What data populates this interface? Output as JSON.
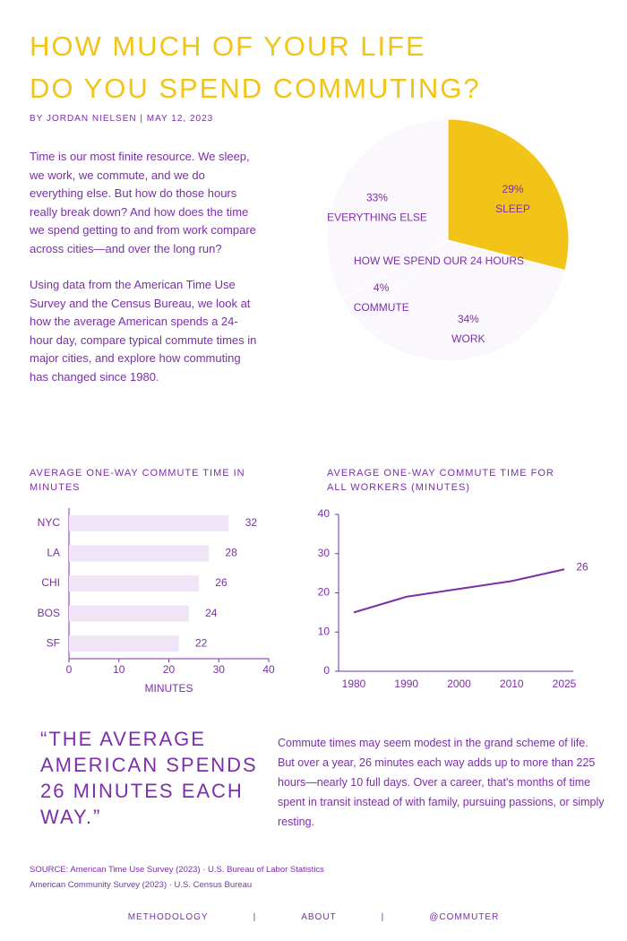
{
  "header": {
    "title_lines": [
      "HOW MUCH OF YOUR LIFE",
      "DO YOU SPEND COMMUTING?"
    ],
    "byline": "BY JORDAN NIELSEN | MAY 12, 2023"
  },
  "intro": [
    "Time is our most finite resource. We sleep, we work, we commute, and we do everything else. But how do those hours really break down? And how does the time we spend getting to and from work compare across cities—and over the long run?",
    "Using data from the American Time Use Survey and the Census Bureau, we look at how the average American spends a 24-hour day, compare typical commute times in major cities, and explore how commuting has changed since 1980."
  ],
  "chart_data": [
    {
      "type": "pie",
      "title": "HOW WE SPEND OUR 24 HOURS",
      "categories": [
        "SLEEP",
        "WORK",
        "COMMUTE",
        "EVERYTHING ELSE"
      ],
      "values": [
        29,
        34,
        4,
        33
      ],
      "value_labels": [
        "29%",
        "34%",
        "4%",
        "33%"
      ],
      "colors": [
        "#f2c417",
        "#fbf8fd",
        "#fbf8fd",
        "#fbf8fd"
      ]
    },
    {
      "type": "hbar",
      "title": "AVERAGE ONE-WAY COMMUTE TIME IN MINUTES",
      "categories": [
        "NYC",
        "LA",
        "CHI",
        "BOS",
        "SF"
      ],
      "values": [
        32,
        28,
        26,
        24,
        22
      ],
      "color": "#efe5f6",
      "xlim": [
        0,
        40
      ],
      "xticks": [
        0,
        10,
        20,
        30,
        40
      ],
      "xlabel": "MINUTES"
    },
    {
      "type": "line",
      "title": "AVERAGE ONE-WAY COMMUTE TIME FOR ALL WORKERS (MINUTES)",
      "categories": [
        "1980",
        "1990",
        "2000",
        "2010",
        "2025"
      ],
      "values": [
        15,
        19,
        21,
        23,
        26
      ],
      "color": "#7b2fa8",
      "ylim": [
        0,
        40
      ],
      "yticks": [
        0,
        10,
        20,
        30,
        40
      ]
    }
  ],
  "quote": "“THE AVERAGE AMERICAN SPENDS 26 MINUTES EACH WAY.”",
  "quote_body": "Commute times may seem modest in the grand scheme of life. But over a year, 26 minutes each way adds up to more than 225 hours—nearly 10 full days. Over a career, that's months of time spent in transit instead of with family, pursuing passions, or simply resting.",
  "sources": [
    "SOURCE: American Time Use Survey (2023) · U.S. Bureau of Labor Statistics",
    "American Community Survey (2023) · U.S. Census Bureau"
  ],
  "footer_links": [
    "METHODOLOGY",
    "ABOUT",
    "@COMMUTER"
  ]
}
